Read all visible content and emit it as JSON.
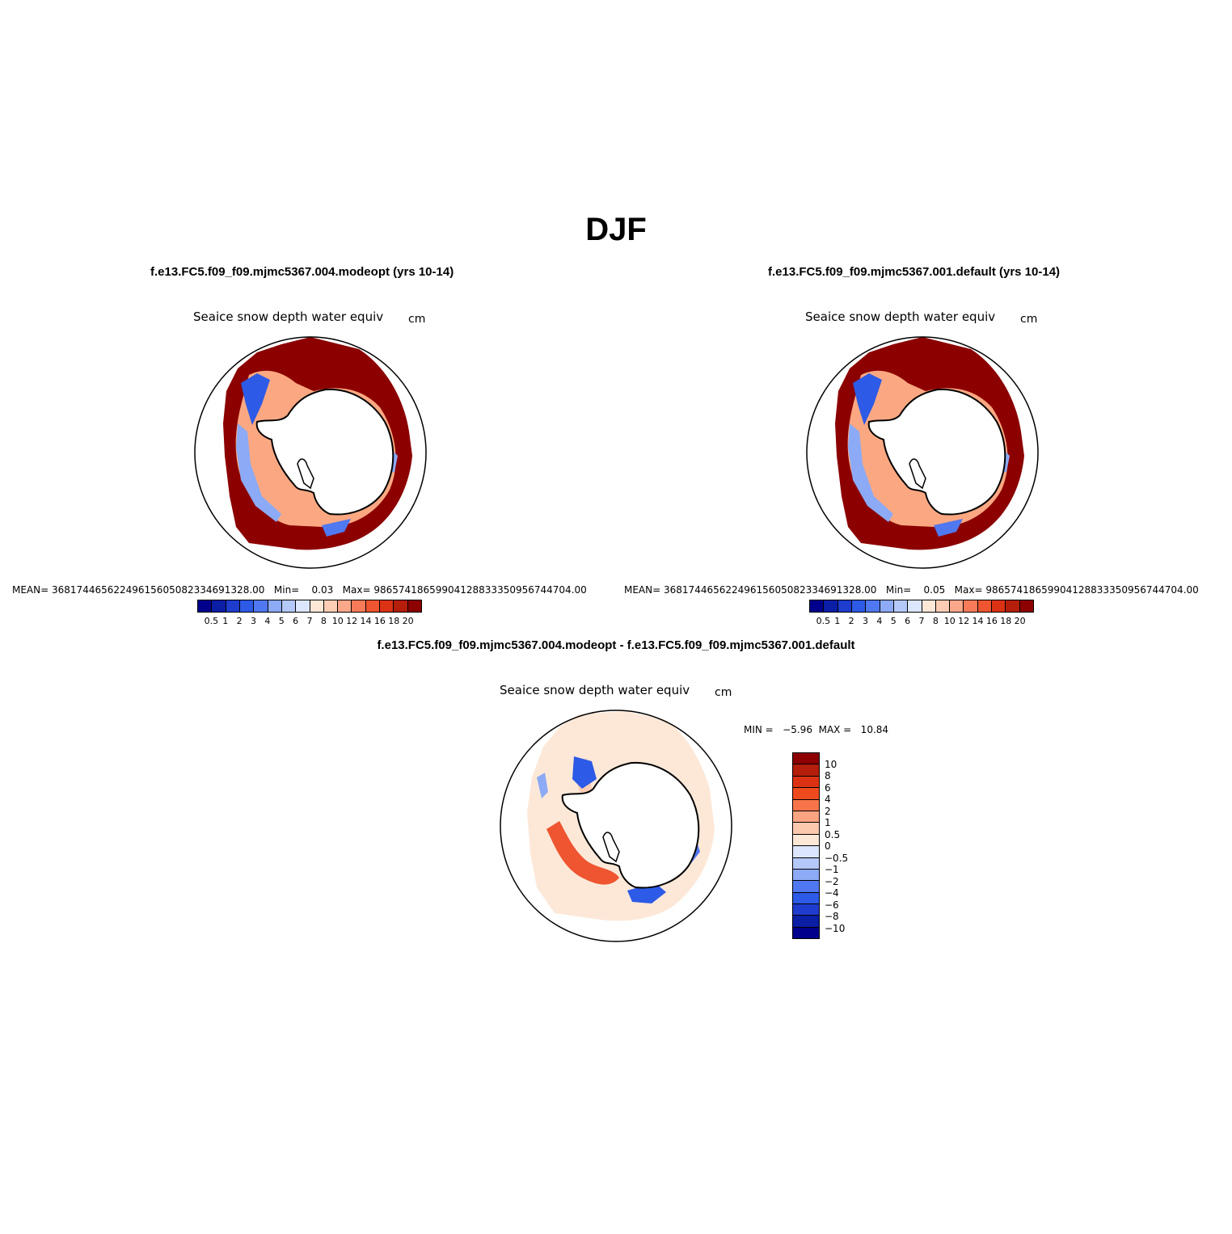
{
  "title": "DJF",
  "panels": [
    {
      "title": "f.e13.FC5.f09_f09.mjmc5367.004.modeopt (yrs 10-14)",
      "variable": "Seaice snow depth water equiv",
      "units": "cm",
      "stats": "MEAN= 368174465622496156050823346913 28.00   Min=    0.03   Max= 986574186599041288333509567447 04.00",
      "mean_label": "MEAN=",
      "mean_value": "36817446562249615605082334691328.00",
      "min_label": "Min=",
      "min_value": "0.03",
      "max_label": "Max=",
      "max_value": "98657418659904128833350956744704.00"
    },
    {
      "title": "f.e13.FC5.f09_f09.mjmc5367.001.default (yrs 10-14)",
      "variable": "Seaice snow depth water equiv",
      "units": "cm",
      "mean_label": "MEAN=",
      "mean_value": "36817446562249615605082334691328.00",
      "min_label": "Min=",
      "min_value": "0.05",
      "max_label": "Max=",
      "max_value": "98657418659904128833350956744704.00"
    },
    {
      "title": "f.e13.FC5.f09_f09.mjmc5367.004.modeopt - f.e13.FC5.f09_f09.mjmc5367.001.default",
      "variable": "Seaice snow depth water equiv",
      "units": "cm",
      "minmax": "MIN =   −5.96  MAX =   10.84"
    }
  ],
  "colorbar_abs": {
    "colors": [
      "#00008c",
      "#0a1ea6",
      "#1e3ccd",
      "#2d5ae6",
      "#5078f0",
      "#8caaf5",
      "#b4c8fa",
      "#dce6fc",
      "#fde8d8",
      "#fccdb4",
      "#fba88a",
      "#f77b58",
      "#ee5530",
      "#dc3214",
      "#b41e0a",
      "#8c0000"
    ],
    "labels": [
      "0.5",
      "1",
      "2",
      "3",
      "4",
      "5",
      "6",
      "7",
      "8",
      "10",
      "12",
      "14",
      "16",
      "18",
      "20"
    ]
  },
  "colorbar_diff": {
    "colors": [
      "#8c0000",
      "#b41e0a",
      "#dc3214",
      "#ee4a1e",
      "#f7744a",
      "#fba482",
      "#fcc8ae",
      "#fde8d8",
      "#dce6fc",
      "#b4c8fa",
      "#8caaf5",
      "#5078f0",
      "#2d5ae6",
      "#1e3ccd",
      "#0a1ea6",
      "#00008c"
    ],
    "labels": [
      "10",
      "8",
      "6",
      "4",
      "2",
      "1",
      "0.5",
      "0",
      "−0.5",
      "−1",
      "−2",
      "−4",
      "−6",
      "−8",
      "−10"
    ]
  }
}
